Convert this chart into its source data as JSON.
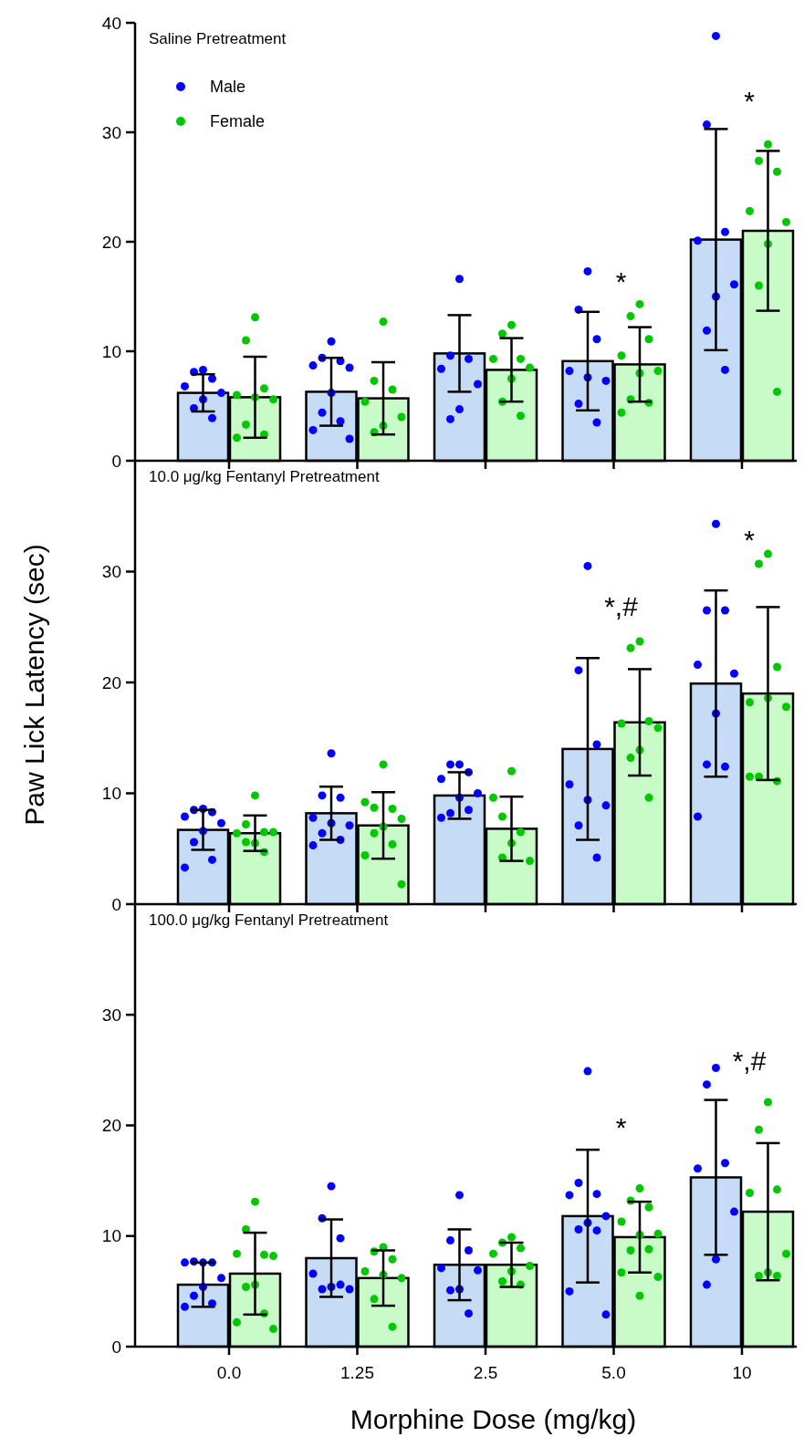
{
  "chart_data": [
    {
      "type": "bar",
      "title": "Saline Pretreatment",
      "categories": [
        "0.0",
        "1.25",
        "2.5",
        "5.0",
        "10"
      ],
      "ylim": [
        0,
        40
      ],
      "yticks": [
        0,
        10,
        20,
        30,
        40
      ],
      "tick_labels": "y",
      "legend": "top left",
      "marker": "circle",
      "series": [
        {
          "color": "#c6dcf6",
          "values": [
            6.2,
            6.3,
            9.8,
            9.1,
            20.2
          ],
          "errors": [
            1.7,
            3.1,
            3.5,
            4.5,
            10.1
          ]
        },
        {
          "color": "#c9fbc9",
          "values": [
            5.8,
            5.7,
            8.3,
            8.8,
            21.0
          ],
          "errors": [
            3.7,
            3.3,
            2.9,
            3.4,
            7.3
          ]
        },
        {
          "type": "scatter",
          "name": "Male",
          "color": "#0000ff",
          "x": [
            "0.0",
            "0.0",
            "0.0",
            "0.0",
            "0.0",
            "0.0",
            "0.0",
            "0.0",
            "1.25",
            "1.25",
            "1.25",
            "1.25",
            "1.25",
            "1.25",
            "1.25",
            "1.25",
            "1.25",
            "1.25",
            "2.5",
            "2.5",
            "2.5",
            "2.5",
            "2.5",
            "2.5",
            "2.5",
            "5.0",
            "5.0",
            "5.0",
            "5.0",
            "5.0",
            "5.0",
            "5.0",
            "5.0",
            "10",
            "10",
            "10",
            "10",
            "10",
            "10",
            "10",
            "10"
          ],
          "values": [
            8.3,
            8.1,
            7.5,
            6.8,
            6.2,
            5.6,
            4.8,
            3.9,
            10.9,
            9.4,
            9.1,
            8.7,
            8.5,
            6.2,
            4.4,
            3.6,
            2.8,
            2.0,
            16.6,
            9.6,
            9.3,
            8.4,
            7.0,
            4.7,
            3.8,
            17.3,
            13.8,
            11.1,
            8.2,
            7.3,
            7.6,
            5.2,
            3.5,
            38.8,
            30.7,
            20.9,
            20.1,
            16.1,
            15.0,
            11.9,
            8.3
          ]
        },
        {
          "type": "scatter",
          "name": "Female",
          "color": "#00c800",
          "x": [
            "0.0",
            "0.0",
            "0.0",
            "0.0",
            "0.0",
            "0.0",
            "0.0",
            "0.0",
            "0.0",
            "1.25",
            "1.25",
            "1.25",
            "1.25",
            "1.25",
            "1.25",
            "1.25",
            "2.5",
            "2.5",
            "2.5",
            "2.5",
            "2.5",
            "2.5",
            "2.5",
            "2.5",
            "5.0",
            "5.0",
            "5.0",
            "5.0",
            "5.0",
            "5.0",
            "5.0",
            "5.0",
            "5.0",
            "10",
            "10",
            "10",
            "10",
            "10",
            "10",
            "10",
            "10"
          ],
          "values": [
            13.1,
            11.0,
            6.6,
            6.0,
            5.6,
            5.8,
            3.3,
            2.4,
            2.1,
            12.7,
            7.3,
            6.5,
            5.4,
            4.0,
            3.2,
            2.6,
            12.4,
            11.6,
            9.3,
            9.3,
            8.5,
            7.5,
            5.4,
            4.1,
            14.3,
            13.2,
            11.1,
            9.6,
            8.2,
            8.0,
            5.6,
            5.3,
            4.4,
            28.9,
            27.4,
            26.4,
            22.8,
            21.8,
            19.8,
            16.0,
            6.3
          ]
        }
      ],
      "annotations": [
        "*",
        "*"
      ]
    },
    {
      "type": "bar",
      "title": "10.0 μg/kg Fentanyl Pretreatment",
      "ylabel": "Paw Lick Latency (sec)",
      "categories": [
        "0.0",
        "1.25",
        "2.5",
        "5.0",
        "10"
      ],
      "ylim": [
        0,
        40
      ],
      "yticks": [
        0,
        10,
        20,
        30
      ],
      "tick_labels": "y",
      "marker": "circle",
      "series": [
        {
          "color": "#c6dcf6",
          "values": [
            6.7,
            8.2,
            9.8,
            14.0,
            19.9
          ],
          "errors": [
            1.8,
            2.4,
            2.1,
            8.2,
            8.4
          ]
        },
        {
          "color": "#c9fbc9",
          "values": [
            6.4,
            7.1,
            6.8,
            16.4,
            19.0
          ],
          "errors": [
            1.6,
            3.0,
            2.9,
            4.8,
            7.8
          ]
        },
        {
          "type": "scatter",
          "color": "#0000ff",
          "x": [
            "0.0",
            "0.0",
            "0.0",
            "0.0",
            "0.0",
            "0.0",
            "0.0",
            "0.0",
            "0.0",
            "1.25",
            "1.25",
            "1.25",
            "1.25",
            "1.25",
            "1.25",
            "1.25",
            "1.25",
            "1.25",
            "2.5",
            "2.5",
            "2.5",
            "2.5",
            "2.5",
            "2.5",
            "2.5",
            "2.5",
            "2.5",
            "5.0",
            "5.0",
            "5.0",
            "5.0",
            "5.0",
            "5.0",
            "5.0",
            "5.0",
            "10",
            "10",
            "10",
            "10",
            "10",
            "10",
            "10",
            "10",
            "10"
          ],
          "values": [
            8.6,
            8.5,
            8.3,
            7.9,
            7.3,
            6.6,
            5.6,
            4.0,
            3.3,
            13.6,
            9.8,
            9.6,
            7.8,
            7.1,
            7.3,
            6.4,
            5.8,
            5.3,
            12.6,
            12.6,
            11.9,
            11.3,
            10.0,
            9.6,
            8.2,
            8.5,
            7.8,
            30.5,
            21.1,
            14.4,
            10.8,
            8.9,
            9.4,
            7.1,
            4.2,
            34.3,
            26.5,
            26.5,
            21.6,
            20.8,
            17.2,
            12.6,
            12.4,
            7.9
          ]
        },
        {
          "type": "scatter",
          "color": "#00c800",
          "x": [
            "0.0",
            "0.0",
            "0.0",
            "0.0",
            "0.0",
            "0.0",
            "0.0",
            "0.0",
            "1.25",
            "1.25",
            "1.25",
            "1.25",
            "1.25",
            "1.25",
            "1.25",
            "1.25",
            "1.25",
            "1.25",
            "2.5",
            "2.5",
            "2.5",
            "2.5",
            "2.5",
            "2.5",
            "2.5",
            "5.0",
            "5.0",
            "5.0",
            "5.0",
            "5.0",
            "5.0",
            "5.0",
            "5.0",
            "10",
            "10",
            "10",
            "10",
            "10",
            "10",
            "10",
            "10",
            "10"
          ],
          "values": [
            9.8,
            7.2,
            6.5,
            6.4,
            6.5,
            5.5,
            5.6,
            4.7,
            12.6,
            8.7,
            8.6,
            9.2,
            7.7,
            7.0,
            6.4,
            5.4,
            4.4,
            1.8,
            12.0,
            7.9,
            6.5,
            9.6,
            3.9,
            5.5,
            4.2,
            23.7,
            23.1,
            16.5,
            16.3,
            15.9,
            13.9,
            13.2,
            9.6,
            31.6,
            30.7,
            21.4,
            18.2,
            17.8,
            18.6,
            11.5,
            11.1,
            11.5
          ]
        }
      ],
      "annotations": [
        "*,#",
        "*"
      ]
    },
    {
      "type": "bar",
      "title": "100.0 μg/kg Fentanyl Pretreatment",
      "xlabel": "Morphine Dose (mg/kg)",
      "categories": [
        "0.0",
        "1.25",
        "2.5",
        "5.0",
        "10"
      ],
      "ylim": [
        0,
        40
      ],
      "yticks": [
        0,
        10,
        20,
        30
      ],
      "marker": "circle",
      "series": [
        {
          "color": "#c6dcf6",
          "values": [
            5.6,
            8.0,
            7.4,
            11.8,
            15.3
          ],
          "errors": [
            2.0,
            3.5,
            3.2,
            6.0,
            7.0
          ]
        },
        {
          "color": "#c9fbc9",
          "values": [
            6.6,
            6.2,
            7.4,
            9.9,
            12.2
          ],
          "errors": [
            3.7,
            2.5,
            2.0,
            3.2,
            6.2
          ]
        },
        {
          "type": "scatter",
          "color": "#0000ff",
          "x": [
            "0.0",
            "0.0",
            "0.0",
            "0.0",
            "0.0",
            "0.0",
            "0.0",
            "0.0",
            "0.0",
            "1.25",
            "1.25",
            "1.25",
            "1.25",
            "1.25",
            "1.25",
            "1.25",
            "1.25",
            "2.5",
            "2.5",
            "2.5",
            "2.5",
            "2.5",
            "2.5",
            "2.5",
            "2.5",
            "5.0",
            "5.0",
            "5.0",
            "5.0",
            "5.0",
            "5.0",
            "5.0",
            "5.0",
            "5.0",
            "5.0",
            "10",
            "10",
            "10",
            "10",
            "10",
            "10",
            "10"
          ],
          "values": [
            7.6,
            7.7,
            7.6,
            7.6,
            6.2,
            5.4,
            4.6,
            3.9,
            3.6,
            14.5,
            11.6,
            9.8,
            6.6,
            5.2,
            5.4,
            5.2,
            5.6,
            13.7,
            9.6,
            8.7,
            7.1,
            6.9,
            5.2,
            5.1,
            3.0,
            24.9,
            14.8,
            13.8,
            13.7,
            11.8,
            11.2,
            10.6,
            10.5,
            5.0,
            2.9,
            25.2,
            23.7,
            16.6,
            16.1,
            12.2,
            7.9,
            5.6
          ]
        },
        {
          "type": "scatter",
          "color": "#00c800",
          "x": [
            "0.0",
            "0.0",
            "0.0",
            "0.0",
            "0.0",
            "0.0",
            "0.0",
            "0.0",
            "0.0",
            "0.0",
            "1.25",
            "1.25",
            "1.25",
            "1.25",
            "1.25",
            "1.25",
            "1.25",
            "1.25",
            "2.5",
            "2.5",
            "2.5",
            "2.5",
            "2.5",
            "2.5",
            "2.5",
            "2.5",
            "5.0",
            "5.0",
            "5.0",
            "5.0",
            "5.0",
            "5.0",
            "5.0",
            "5.0",
            "5.0",
            "5.0",
            "5.0",
            "10",
            "10",
            "10",
            "10",
            "10",
            "10",
            "10",
            "10"
          ],
          "values": [
            13.1,
            10.6,
            8.3,
            8.4,
            8.2,
            5.6,
            5.4,
            3.0,
            2.2,
            1.6,
            9.0,
            8.6,
            7.9,
            6.8,
            6.2,
            6.5,
            4.3,
            1.8,
            9.9,
            9.4,
            8.9,
            8.4,
            7.3,
            6.8,
            5.9,
            5.6,
            14.3,
            13.2,
            12.6,
            11.3,
            10.2,
            10.1,
            8.7,
            8.8,
            6.7,
            6.3,
            4.6,
            22.1,
            19.6,
            14.2,
            13.9,
            8.4,
            6.7,
            6.4,
            6.4
          ]
        }
      ],
      "annotations": [
        "*",
        "*,#"
      ]
    }
  ]
}
